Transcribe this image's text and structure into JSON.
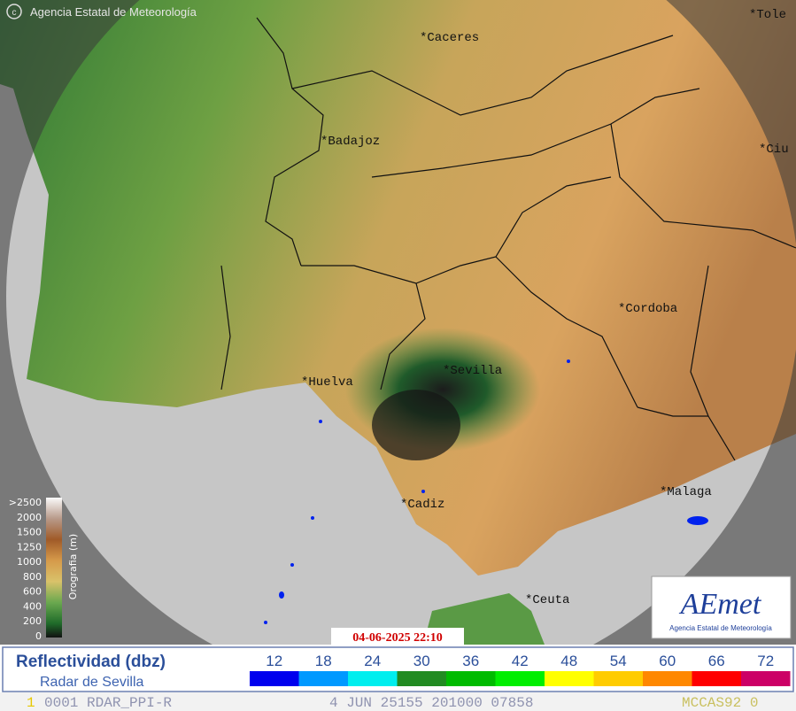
{
  "header": {
    "agency": "Agencia Estatal de Meteorología"
  },
  "cities": [
    {
      "label": "*Caceres"
    },
    {
      "label": "*Badajoz"
    },
    {
      "label": "*Cordoba"
    },
    {
      "label": "*Sevilla"
    },
    {
      "label": "*Huelva"
    },
    {
      "label": "*Cadiz"
    },
    {
      "label": "*Malaga"
    },
    {
      "label": "*Ceuta"
    },
    {
      "label": "*Tole"
    },
    {
      "label": "*Ciu"
    }
  ],
  "orography": {
    "title": "Orografia (m)",
    "levels": [
      ">2500",
      "2000",
      "1500",
      "1250",
      "1000",
      "800",
      "600",
      "400",
      "200",
      "0"
    ]
  },
  "logo": {
    "name": "AEmet",
    "subtitle": "Agencia Estatal de Meteorología"
  },
  "timestamp": "04-06-2025 22:10",
  "legend": {
    "title": "Reflectividad (dbz)",
    "subtitle": "Radar de Sevilla",
    "levels": [
      {
        "value": 12,
        "color": "#0000ee"
      },
      {
        "value": 18,
        "color": "#0099ff"
      },
      {
        "value": 24,
        "color": "#00eeee"
      },
      {
        "value": 30,
        "color": "#228b22"
      },
      {
        "value": 36,
        "color": "#00bb00"
      },
      {
        "value": 42,
        "color": "#00ee00"
      },
      {
        "value": 48,
        "color": "#ffff00"
      },
      {
        "value": 54,
        "color": "#ffcc00"
      },
      {
        "value": 60,
        "color": "#ff8800"
      },
      {
        "value": 66,
        "color": "#ff0000"
      },
      {
        "value": 72,
        "color": "#cc0066"
      }
    ]
  },
  "footer": {
    "items": [
      "1",
      "0001 RDAR_PPI-R",
      "4 JUN 25155 201000 07858",
      "MCCAS92 0"
    ]
  }
}
